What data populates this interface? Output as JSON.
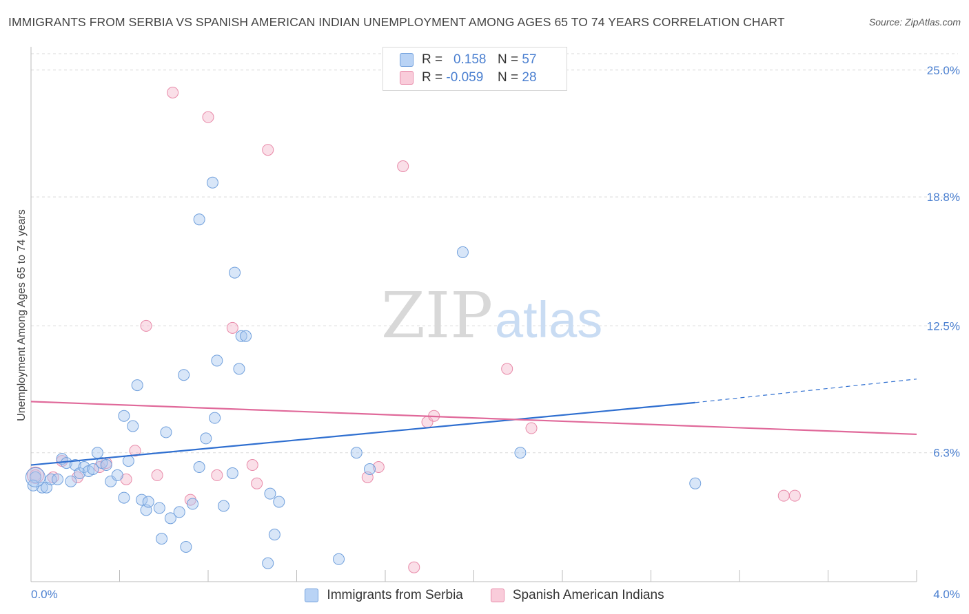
{
  "title": "IMMIGRANTS FROM SERBIA VS SPANISH AMERICAN INDIAN UNEMPLOYMENT AMONG AGES 65 TO 74 YEARS CORRELATION CHART",
  "source": "Source: ZipAtlas.com",
  "watermark": {
    "zip": "ZIP",
    "atlas": "atlas"
  },
  "legend": {
    "rows": [
      {
        "r_label": "R =",
        "r_value": "0.158",
        "n_label": "N =",
        "n_value": "57"
      },
      {
        "r_label": "R =",
        "r_value": "-0.059",
        "n_label": "N =",
        "n_value": "28"
      }
    ]
  },
  "colors": {
    "blue_fill": "#a9c8f0",
    "blue_stroke": "#6f9fdc",
    "blue_line": "#2f6fd0",
    "pink_fill": "#f5b8cb",
    "pink_stroke": "#e889a8",
    "pink_line": "#e0699a",
    "tick_text": "#4a7fd0",
    "grid": "#d9d9d9"
  },
  "chart_data": {
    "type": "scatter",
    "title": "IMMIGRANTS FROM SERBIA VS SPANISH AMERICAN INDIAN UNEMPLOYMENT AMONG AGES 65 TO 74 YEARS CORRELATION CHART",
    "xlabel": "",
    "ylabel": "Unemployment Among Ages 65 to 74 years",
    "xlim": [
      0,
      4.0
    ],
    "ylim": [
      0,
      25.8
    ],
    "x_tick_labels": [
      "0.0%",
      "4.0%"
    ],
    "y_ticks": [
      6.3,
      12.5,
      18.8,
      25.0
    ],
    "y_tick_labels": [
      "6.3%",
      "12.5%",
      "18.8%",
      "25.0%"
    ],
    "grid": true,
    "legend_position": "bottom-center",
    "series": [
      {
        "name": "Immigrants from Serbia",
        "color": "#a9c8f0",
        "points": [
          [
            0.02,
            5.1
          ],
          [
            0.05,
            4.6
          ],
          [
            0.07,
            4.6
          ],
          [
            0.09,
            5.0
          ],
          [
            0.12,
            5.0
          ],
          [
            0.14,
            6.0
          ],
          [
            0.16,
            5.8
          ],
          [
            0.18,
            4.9
          ],
          [
            0.2,
            5.7
          ],
          [
            0.22,
            5.3
          ],
          [
            0.24,
            5.6
          ],
          [
            0.26,
            5.4
          ],
          [
            0.28,
            5.5
          ],
          [
            0.3,
            6.3
          ],
          [
            0.32,
            5.8
          ],
          [
            0.34,
            5.7
          ],
          [
            0.36,
            4.9
          ],
          [
            0.39,
            5.2
          ],
          [
            0.42,
            8.1
          ],
          [
            0.42,
            4.1
          ],
          [
            0.44,
            5.9
          ],
          [
            0.46,
            7.6
          ],
          [
            0.48,
            9.6
          ],
          [
            0.5,
            4.0
          ],
          [
            0.52,
            3.5
          ],
          [
            0.53,
            3.9
          ],
          [
            0.58,
            3.6
          ],
          [
            0.59,
            2.1
          ],
          [
            0.61,
            7.3
          ],
          [
            0.63,
            3.1
          ],
          [
            0.67,
            3.4
          ],
          [
            0.69,
            10.1
          ],
          [
            0.7,
            1.7
          ],
          [
            0.73,
            3.8
          ],
          [
            0.76,
            17.7
          ],
          [
            0.76,
            5.6
          ],
          [
            0.79,
            7.0
          ],
          [
            0.82,
            19.5
          ],
          [
            0.83,
            8.0
          ],
          [
            0.84,
            10.8
          ],
          [
            0.87,
            3.7
          ],
          [
            0.91,
            5.3
          ],
          [
            0.92,
            15.1
          ],
          [
            0.94,
            10.4
          ],
          [
            0.95,
            12.0
          ],
          [
            0.97,
            12.0
          ],
          [
            1.07,
            0.9
          ],
          [
            1.08,
            4.3
          ],
          [
            1.1,
            2.3
          ],
          [
            1.12,
            3.9
          ],
          [
            1.39,
            1.1
          ],
          [
            1.47,
            6.3
          ],
          [
            1.53,
            5.5
          ],
          [
            1.95,
            16.1
          ],
          [
            2.21,
            6.3
          ],
          [
            3.0,
            4.8
          ],
          [
            0.01,
            4.7
          ]
        ],
        "trend": {
          "x": [
            0.0,
            3.0
          ],
          "y": [
            5.7,
            8.75
          ],
          "dashed_extension": {
            "x": [
              3.0,
              4.0
            ],
            "y": [
              8.75,
              9.9
            ]
          }
        }
      },
      {
        "name": "Spanish American Indians",
        "color": "#f5b8cb",
        "points": [
          [
            0.02,
            5.2
          ],
          [
            0.1,
            5.1
          ],
          [
            0.14,
            5.9
          ],
          [
            0.21,
            5.1
          ],
          [
            0.31,
            5.6
          ],
          [
            0.34,
            5.8
          ],
          [
            0.43,
            5.0
          ],
          [
            0.47,
            6.4
          ],
          [
            0.52,
            12.5
          ],
          [
            0.57,
            5.2
          ],
          [
            0.64,
            23.9
          ],
          [
            0.72,
            4.0
          ],
          [
            0.8,
            22.7
          ],
          [
            0.84,
            5.2
          ],
          [
            0.91,
            12.4
          ],
          [
            1.0,
            5.7
          ],
          [
            1.02,
            4.8
          ],
          [
            1.07,
            21.1
          ],
          [
            1.52,
            5.1
          ],
          [
            1.57,
            5.6
          ],
          [
            1.68,
            20.3
          ],
          [
            1.73,
            0.7
          ],
          [
            1.79,
            7.8
          ],
          [
            1.82,
            8.1
          ],
          [
            2.15,
            10.4
          ],
          [
            2.26,
            7.5
          ],
          [
            3.4,
            4.2
          ],
          [
            3.45,
            4.2
          ]
        ],
        "trend": {
          "x": [
            0.0,
            4.0
          ],
          "y": [
            8.8,
            7.2
          ]
        }
      }
    ]
  }
}
